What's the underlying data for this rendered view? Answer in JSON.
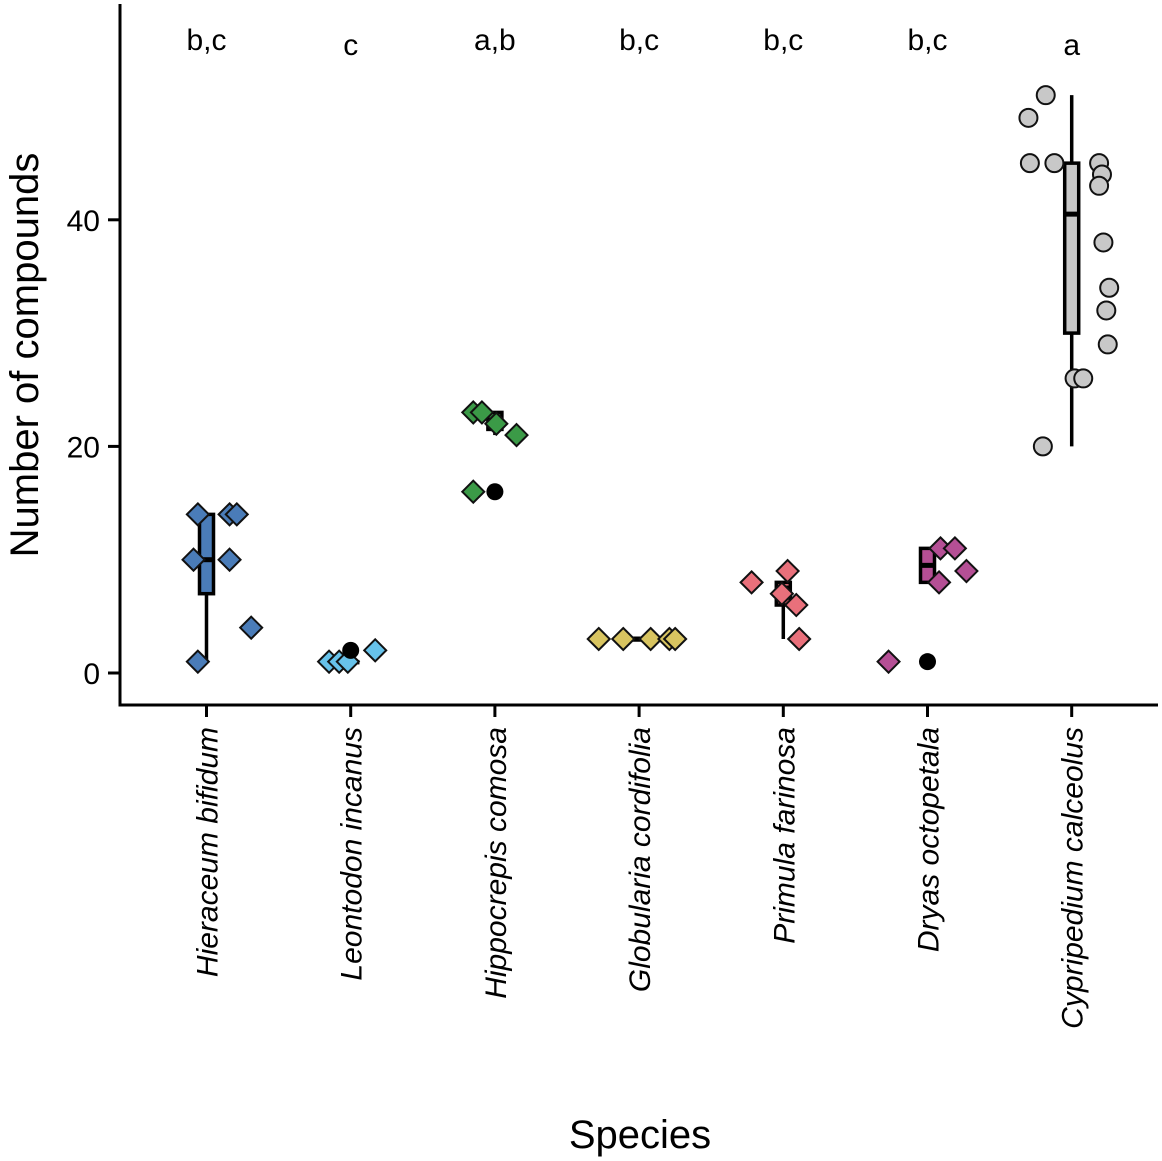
{
  "chart_data": {
    "type": "box-jitter",
    "title": "",
    "xlabel": "Species",
    "ylabel": "Number of compounds",
    "ylim": [
      -3,
      59
    ],
    "yticks": [
      0,
      20,
      40
    ],
    "categories": [
      "Hieraceum bifidum",
      "Leontodon incanus",
      "Hippocrepis comosa",
      "Globularia cordifolia",
      "Primula farinosa",
      "Dryas octopetala",
      "Cypripedium calceolus"
    ],
    "group_letters": [
      "b,c",
      "c",
      "a,b",
      "b,c",
      "b,c",
      "b,c",
      "a"
    ],
    "series": [
      {
        "name": "Hieraceum bifidum",
        "color": "#4a7cb8",
        "marker": "diamond",
        "box": {
          "whisker_low": 1,
          "q1": 7,
          "median": 10,
          "q3": 14,
          "whisker_high": 14
        },
        "points": [
          {
            "dx": -0.06,
            "y": 14
          },
          {
            "dx": 0.16,
            "y": 14
          },
          {
            "dx": 0.21,
            "y": 14
          },
          {
            "dx": -0.09,
            "y": 10
          },
          {
            "dx": 0.16,
            "y": 10
          },
          {
            "dx": 0.31,
            "y": 4
          },
          {
            "dx": -0.06,
            "y": 1
          }
        ],
        "outliers": []
      },
      {
        "name": "Leontodon incanus",
        "color": "#67c2ea",
        "marker": "diamond",
        "box": {
          "whisker_low": 1,
          "q1": 1,
          "median": 1,
          "q3": 1,
          "whisker_high": 1
        },
        "points": [
          {
            "dx": -0.15,
            "y": 1
          },
          {
            "dx": -0.08,
            "y": 1
          },
          {
            "dx": -0.02,
            "y": 1
          },
          {
            "dx": 0.17,
            "y": 2
          }
        ],
        "outliers": [
          {
            "y": 2
          }
        ]
      },
      {
        "name": "Hippocrepis comosa",
        "color": "#3b9a47",
        "marker": "diamond",
        "box": {
          "whisker_low": 21,
          "q1": 21.5,
          "median": 22,
          "q3": 23,
          "whisker_high": 23
        },
        "points": [
          {
            "dx": -0.15,
            "y": 23
          },
          {
            "dx": -0.09,
            "y": 23
          },
          {
            "dx": 0.01,
            "y": 22
          },
          {
            "dx": 0.15,
            "y": 21
          },
          {
            "dx": -0.15,
            "y": 16
          }
        ],
        "outliers": [
          {
            "y": 16
          }
        ]
      },
      {
        "name": "Globularia cordifolia",
        "color": "#d8c460",
        "marker": "diamond",
        "box": {
          "whisker_low": 3,
          "q1": 3,
          "median": 3,
          "q3": 3,
          "whisker_high": 3
        },
        "points": [
          {
            "dx": -0.28,
            "y": 3
          },
          {
            "dx": -0.11,
            "y": 3
          },
          {
            "dx": 0.08,
            "y": 3
          },
          {
            "dx": 0.21,
            "y": 3
          },
          {
            "dx": 0.25,
            "y": 3
          }
        ],
        "outliers": []
      },
      {
        "name": "Primula farinosa",
        "color": "#e9707b",
        "marker": "diamond",
        "box": {
          "whisker_low": 3,
          "q1": 6,
          "median": 7.5,
          "q3": 8,
          "whisker_high": 8
        },
        "points": [
          {
            "dx": -0.22,
            "y": 8
          },
          {
            "dx": 0.03,
            "y": 9
          },
          {
            "dx": -0.01,
            "y": 7
          },
          {
            "dx": 0.09,
            "y": 6
          },
          {
            "dx": 0.11,
            "y": 3
          }
        ],
        "outliers": []
      },
      {
        "name": "Dryas octopetala",
        "color": "#b54f95",
        "marker": "diamond",
        "box": {
          "whisker_low": 8,
          "q1": 8,
          "median": 9.5,
          "q3": 11,
          "whisker_high": 11
        },
        "points": [
          {
            "dx": -0.27,
            "y": 1
          },
          {
            "dx": 0.09,
            "y": 11
          },
          {
            "dx": 0.19,
            "y": 11
          },
          {
            "dx": 0.08,
            "y": 8
          },
          {
            "dx": 0.27,
            "y": 9
          }
        ],
        "outliers": [
          {
            "y": 1
          }
        ]
      },
      {
        "name": "Cypripedium calceolus",
        "color": "#c8c8c8",
        "marker": "circle",
        "box": {
          "whisker_low": 20,
          "q1": 30,
          "median": 40.5,
          "q3": 45,
          "whisker_high": 51
        },
        "points": [
          {
            "dx": -0.18,
            "y": 51
          },
          {
            "dx": -0.3,
            "y": 49
          },
          {
            "dx": -0.29,
            "y": 45
          },
          {
            "dx": -0.12,
            "y": 45
          },
          {
            "dx": 0.19,
            "y": 45
          },
          {
            "dx": 0.21,
            "y": 44
          },
          {
            "dx": 0.19,
            "y": 43
          },
          {
            "dx": 0.22,
            "y": 38
          },
          {
            "dx": 0.26,
            "y": 34
          },
          {
            "dx": 0.24,
            "y": 32
          },
          {
            "dx": 0.25,
            "y": 29
          },
          {
            "dx": 0.02,
            "y": 26
          },
          {
            "dx": 0.08,
            "y": 26
          },
          {
            "dx": -0.2,
            "y": 20
          }
        ],
        "outliers": []
      }
    ]
  }
}
